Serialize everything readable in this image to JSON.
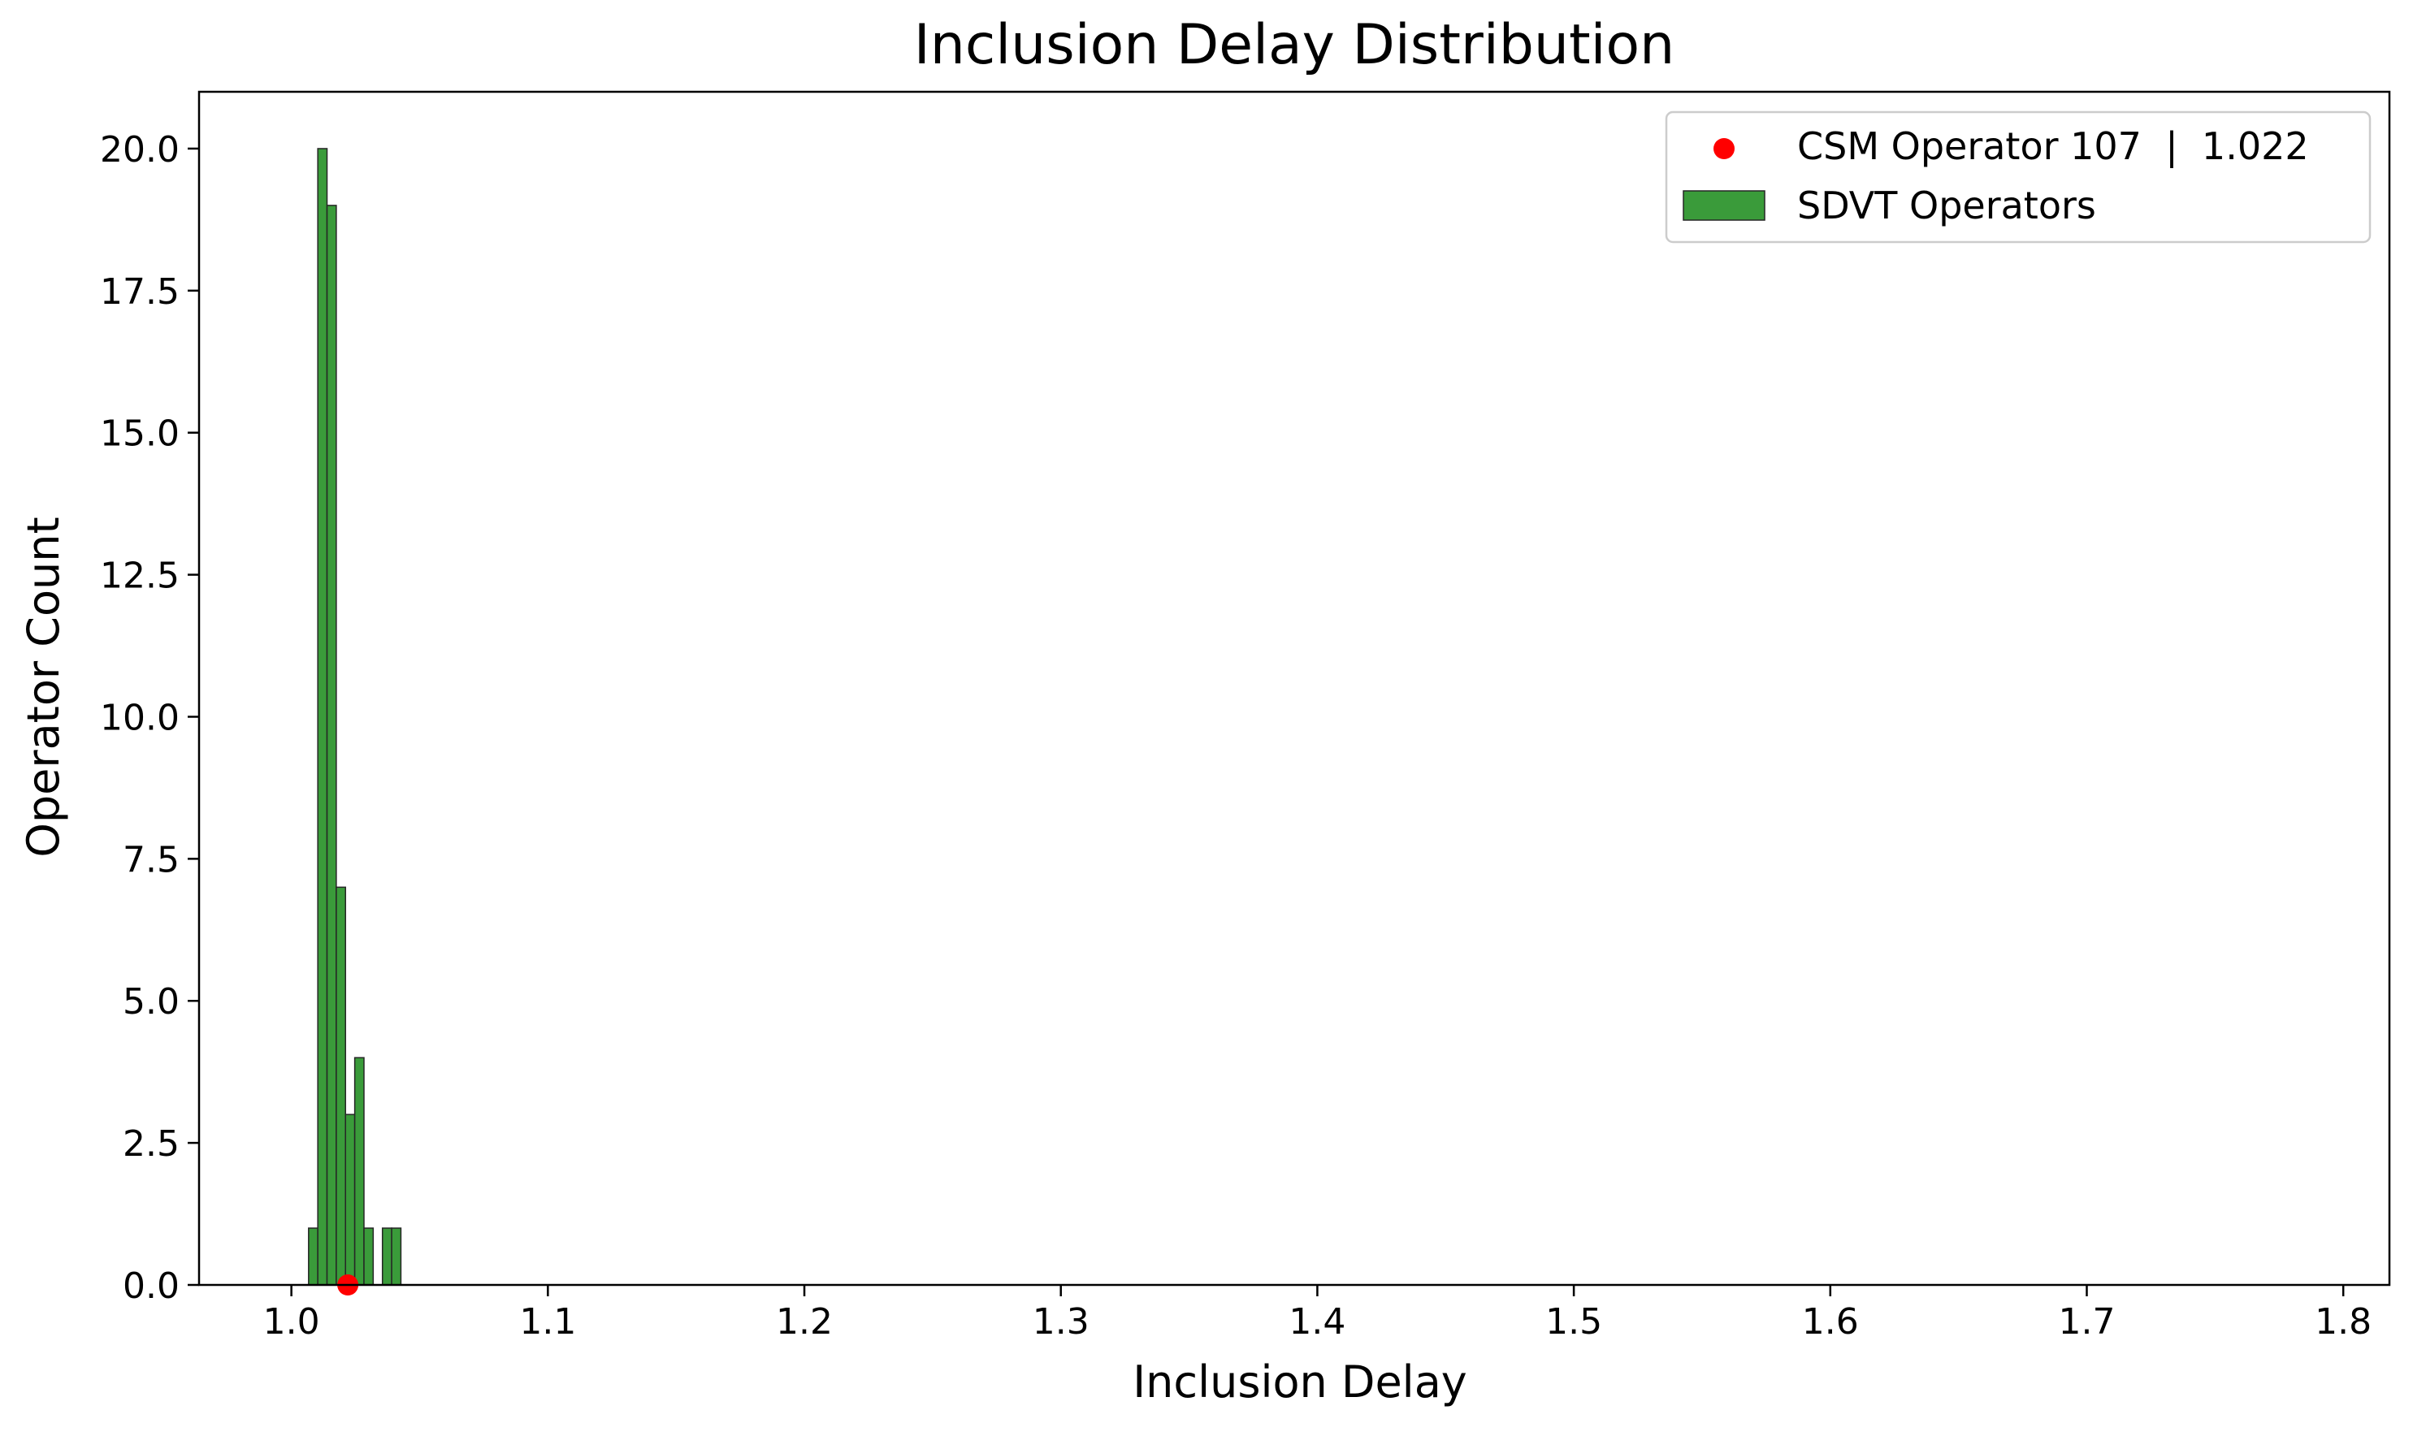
{
  "chart_data": {
    "type": "bar",
    "title": "Inclusion Delay Distribution",
    "xlabel": "Inclusion Delay",
    "ylabel": "Operator Count",
    "xlim": [
      0.964,
      1.818
    ],
    "ylim": [
      0,
      21
    ],
    "x_ticks": [
      1.0,
      1.1,
      1.2,
      1.3,
      1.4,
      1.5,
      1.6,
      1.7,
      1.8
    ],
    "x_tick_labels": [
      "1.0",
      "1.1",
      "1.2",
      "1.3",
      "1.4",
      "1.5",
      "1.6",
      "1.7",
      "1.8"
    ],
    "y_ticks": [
      0,
      2.5,
      5,
      7.5,
      10,
      12.5,
      15,
      17.5,
      20
    ],
    "y_tick_labels": [
      "0.0",
      "2.5",
      "5.0",
      "7.5",
      "10.0",
      "12.5",
      "15.0",
      "17.5",
      "20.0"
    ],
    "grid": false,
    "legend_position": "top-right",
    "series": [
      {
        "name": "SDVT Operators",
        "kind": "histogram",
        "color": "#3a9b3a",
        "bins": [
          {
            "start": 1.0067,
            "end": 1.0103,
            "count": 1
          },
          {
            "start": 1.0103,
            "end": 1.0139,
            "count": 20
          },
          {
            "start": 1.0139,
            "end": 1.0175,
            "count": 19
          },
          {
            "start": 1.0175,
            "end": 1.0211,
            "count": 7
          },
          {
            "start": 1.0211,
            "end": 1.0247,
            "count": 3
          },
          {
            "start": 1.0247,
            "end": 1.0283,
            "count": 4
          },
          {
            "start": 1.0283,
            "end": 1.0319,
            "count": 1
          },
          {
            "start": 1.0355,
            "end": 1.0391,
            "count": 1
          },
          {
            "start": 1.0391,
            "end": 1.0427,
            "count": 1
          }
        ]
      },
      {
        "name": "CSM Operator 107  |  1.022",
        "kind": "scatter",
        "color": "#ff0000",
        "points": [
          {
            "x": 1.022,
            "y": 0
          }
        ]
      }
    ]
  }
}
